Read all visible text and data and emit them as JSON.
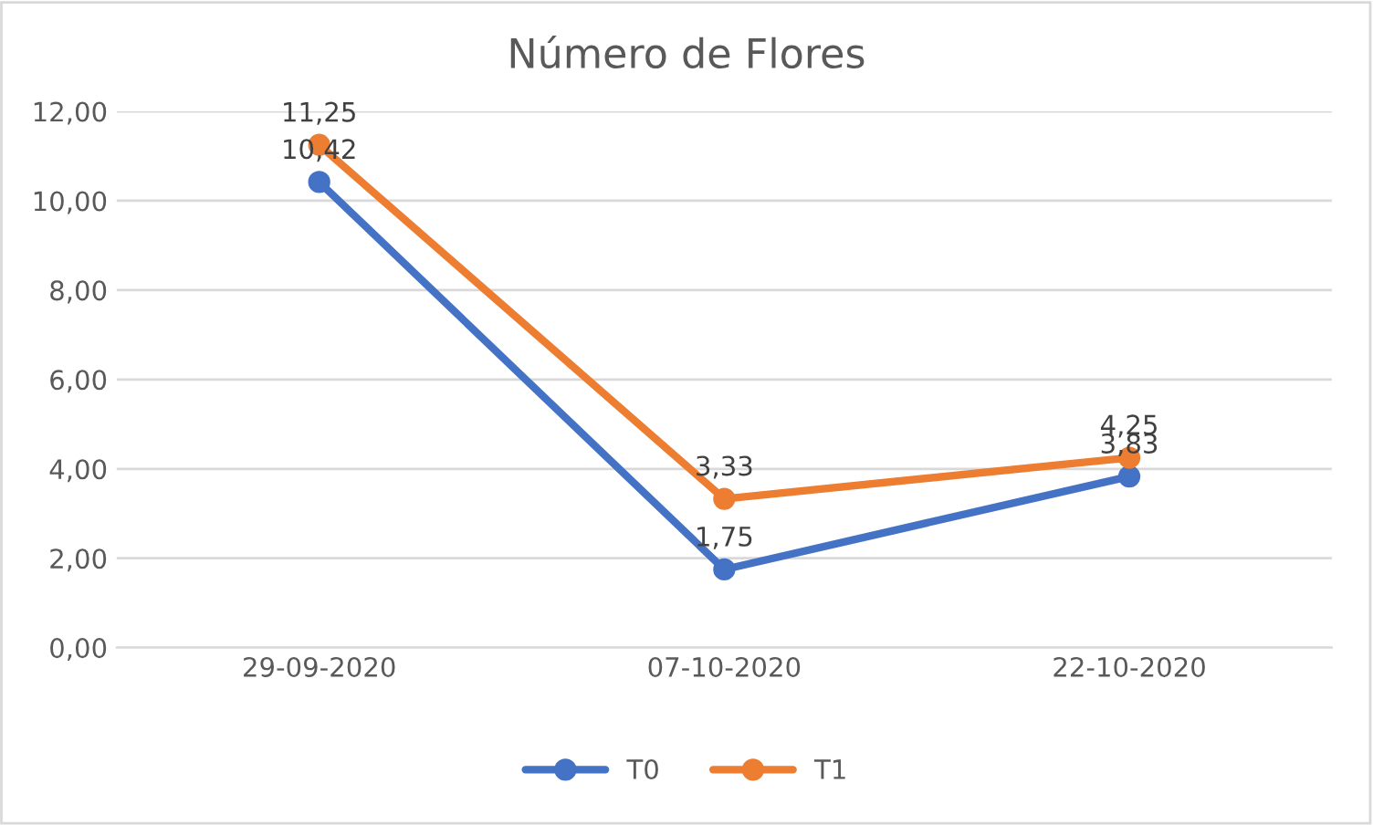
{
  "chart_data": {
    "type": "line",
    "title": "Número de Flores",
    "categories": [
      "29-09-2020",
      "07-10-2020",
      "22-10-2020"
    ],
    "series": [
      {
        "name": "T0",
        "color": "#4472c4",
        "values": [
          10.42,
          1.75,
          3.83
        ],
        "value_labels": [
          "10,42",
          "1,75",
          "3,83"
        ]
      },
      {
        "name": "T1",
        "color": "#ed7d31",
        "values": [
          11.25,
          3.33,
          4.25
        ],
        "value_labels": [
          "11,25",
          "3,33",
          "4,25"
        ]
      }
    ],
    "ylim": [
      0,
      12
    ],
    "yticks": [
      {
        "value": 0,
        "label": "0,00"
      },
      {
        "value": 2,
        "label": "2,00"
      },
      {
        "value": 4,
        "label": "4,00"
      },
      {
        "value": 6,
        "label": "6,00"
      },
      {
        "value": 8,
        "label": "8,00"
      },
      {
        "value": 10,
        "label": "10,00"
      },
      {
        "value": 12,
        "label": "12,00"
      }
    ],
    "grid": "y",
    "legend": "bottom",
    "marker": "circle",
    "line_style": "solid"
  }
}
